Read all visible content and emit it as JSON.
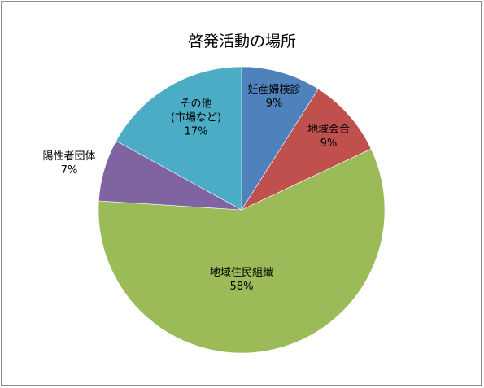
{
  "chart_data": {
    "type": "pie",
    "title": "啓発活動の場所",
    "slices": [
      {
        "lines": [
          "妊産婦検診"
        ],
        "pct_label": "9%",
        "value": 9,
        "color": "#4f81bd"
      },
      {
        "lines": [
          "地域会合"
        ],
        "pct_label": "9%",
        "value": 9,
        "color": "#c0504d"
      },
      {
        "lines": [
          "地域住民組織"
        ],
        "pct_label": "58%",
        "value": 58,
        "color": "#9bbb59"
      },
      {
        "lines": [
          "陽性者団体"
        ],
        "pct_label": "7%",
        "value": 7,
        "color": "#8064a2"
      },
      {
        "lines": [
          "その他",
          "(市場など)"
        ],
        "pct_label": "17%",
        "value": 17,
        "color": "#4bacc6"
      }
    ],
    "legend": "none",
    "label_position": "inside"
  }
}
